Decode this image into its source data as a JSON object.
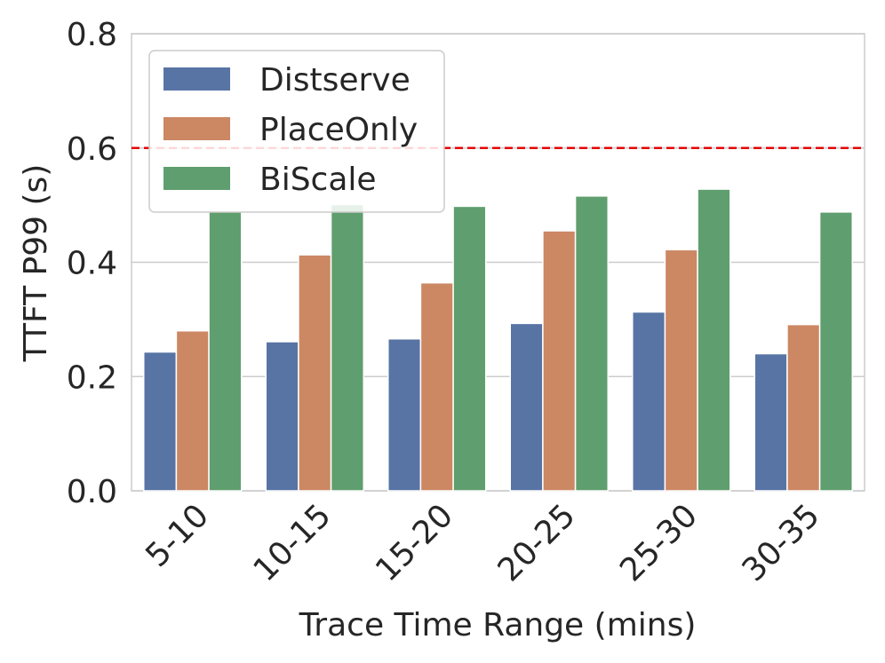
{
  "chart_data": {
    "type": "bar",
    "title": "",
    "xlabel": "Trace Time Range (mins)",
    "ylabel": "TTFT P99 (s)",
    "ylim": [
      0,
      0.8
    ],
    "yticks": [
      "0.0",
      "0.2",
      "0.4",
      "0.6",
      "0.8"
    ],
    "categories": [
      "5-10",
      "10-15",
      "15-20",
      "20-25",
      "25-30",
      "30-35"
    ],
    "series": [
      {
        "name": "Distserve",
        "color": "#5874a5",
        "values": [
          0.243,
          0.261,
          0.266,
          0.293,
          0.313,
          0.24
        ]
      },
      {
        "name": "PlaceOnly",
        "color": "#cc8763",
        "values": [
          0.28,
          0.413,
          0.364,
          0.455,
          0.422,
          0.291
        ]
      },
      {
        "name": "BiScale",
        "color": "#5f9e6e",
        "values": [
          0.489,
          0.501,
          0.498,
          0.516,
          0.528,
          0.488
        ]
      }
    ],
    "threshold": {
      "value": 0.6,
      "color": "#e60000",
      "style": "dashed"
    },
    "grid": true,
    "legend_position": "upper-left"
  }
}
